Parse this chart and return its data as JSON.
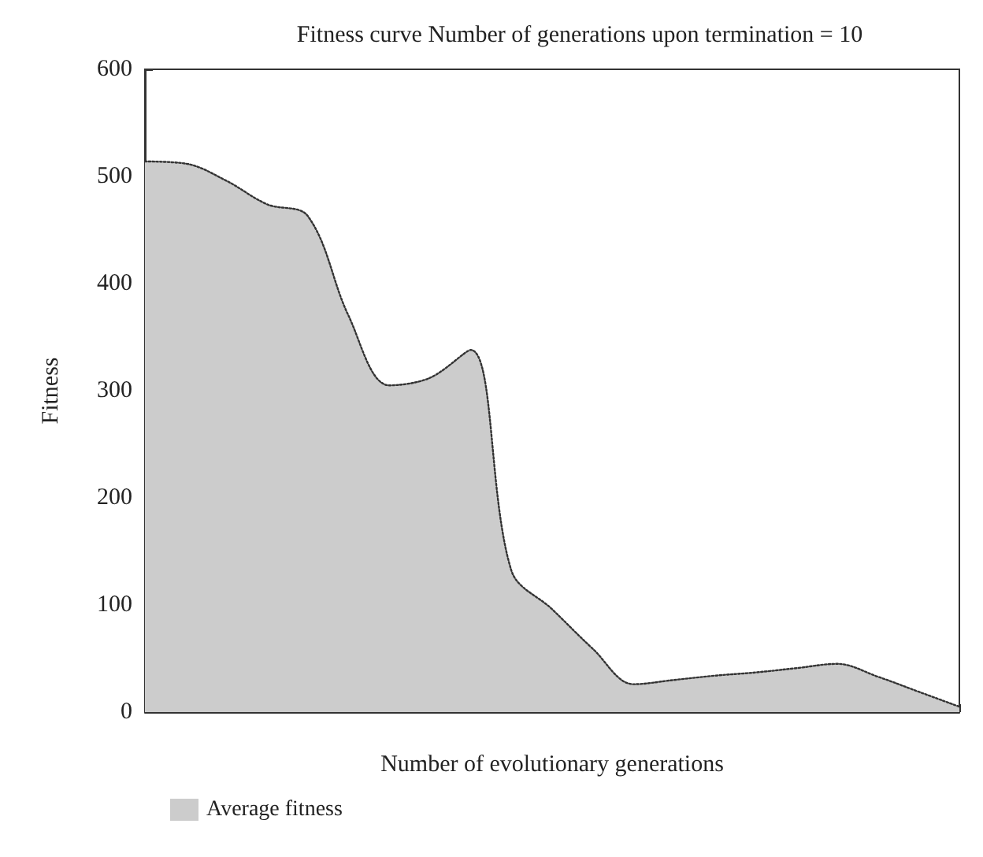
{
  "chart_data": {
    "type": "area",
    "title": "Fitness curve Number of generations upon termination = 10",
    "xlabel": "Number of evolutionary generations",
    "ylabel": "Fitness",
    "categories": [
      null,
      null,
      null,
      null,
      null,
      null,
      null,
      null,
      null,
      null,
      null,
      null,
      null,
      null,
      null,
      null,
      null,
      null,
      null,
      null,
      null
    ],
    "series": [
      {
        "name": "Average fitness",
        "color": "#cccccc",
        "values": [
          514,
          512,
          496,
          474,
          463,
          370,
          305,
          312,
          338,
          132,
          96,
          59,
          26,
          30,
          34,
          37,
          41,
          45,
          33,
          19,
          5
        ]
      }
    ],
    "ylim": [
      0,
      600
    ],
    "yticks": [
      0,
      100,
      200,
      300,
      400,
      500,
      600
    ],
    "grid": false,
    "legend": "bottom left",
    "marker": "none",
    "line_style": "dotted"
  }
}
